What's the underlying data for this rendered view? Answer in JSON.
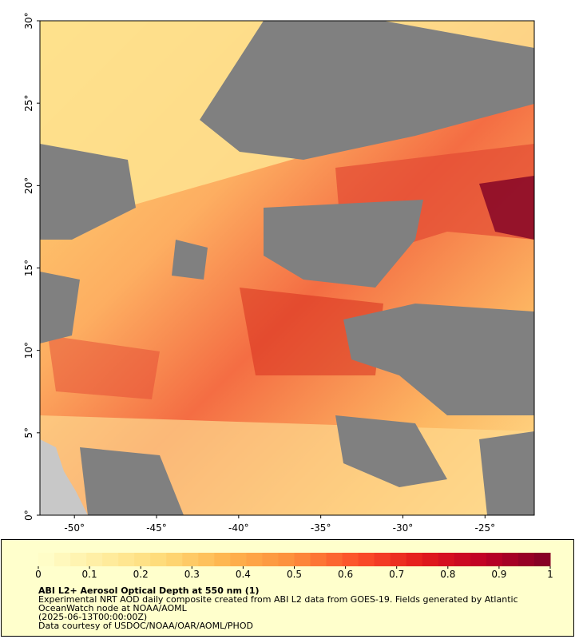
{
  "map": {
    "title": "ABI L2+ Aerosol Optical Depth at 550 nm (1)",
    "description": "Experimental NRT AOD daily composite created from ABI L2 data from GOES-19. Fields generated by Atlantic OceanWatch node at NOAA/AOML",
    "date": "(2025-06-13T00:00:00Z)",
    "credit": "Data courtesy of USDOC/NOAA/OAR/AOML/PHOD",
    "lon_range": [
      -52.1,
      -22
    ],
    "lat_range": [
      0,
      30
    ],
    "lon_ticks": [
      {
        "value": -50,
        "label": "-50°"
      },
      {
        "value": -45,
        "label": "-45°"
      },
      {
        "value": -40,
        "label": "-40°"
      },
      {
        "value": -35,
        "label": "-35°"
      },
      {
        "value": -30,
        "label": "-30°"
      },
      {
        "value": -25,
        "label": "-25°"
      }
    ],
    "lat_ticks": [
      {
        "value": 0,
        "label": "0°"
      },
      {
        "value": 5,
        "label": "5°"
      },
      {
        "value": 10,
        "label": "10°"
      },
      {
        "value": 15,
        "label": "15°"
      },
      {
        "value": 20,
        "label": "20°"
      },
      {
        "value": 25,
        "label": "25°"
      },
      {
        "value": 30,
        "label": "30°"
      }
    ]
  },
  "colorbar": {
    "range": [
      0,
      1
    ],
    "ticks": [
      0,
      0.1,
      0.2,
      0.3,
      0.4,
      0.5,
      0.6,
      0.7,
      0.8,
      0.9,
      1
    ],
    "colors": [
      "#ffffcc",
      "#ffeda0",
      "#fed976",
      "#feb24c",
      "#fd8d3c",
      "#fc4e2a",
      "#e31a1c",
      "#bd0026",
      "#800026"
    ],
    "segments": 32
  }
}
